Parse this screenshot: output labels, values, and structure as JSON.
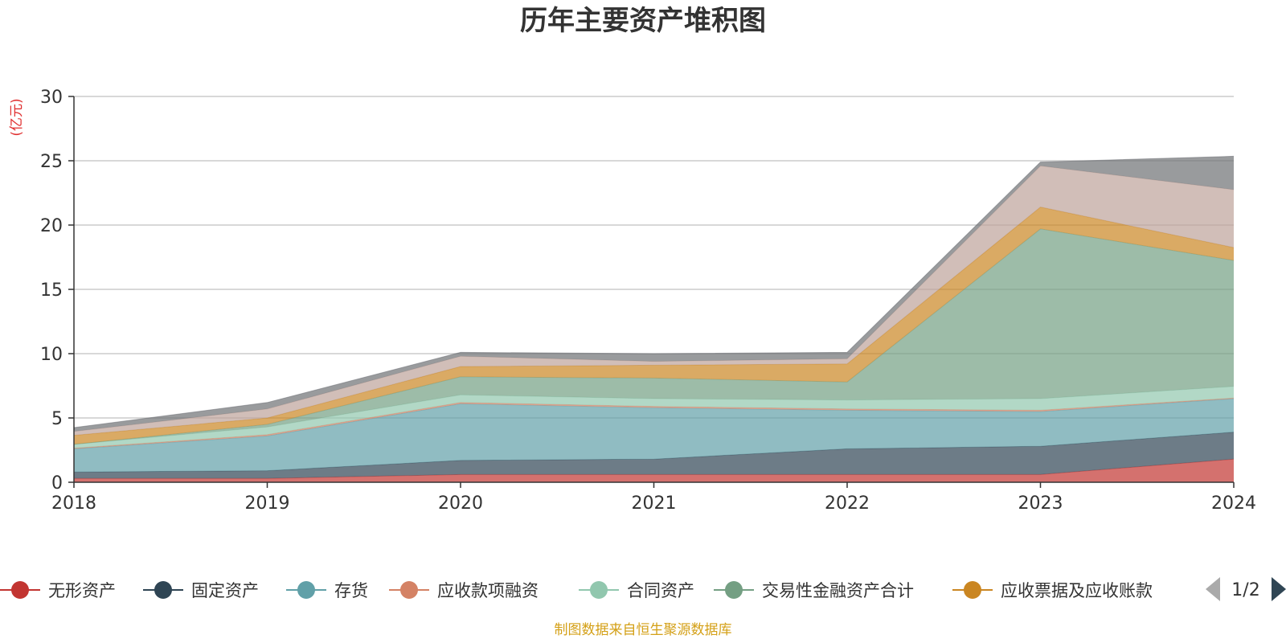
{
  "chart_data": {
    "type": "area",
    "stacked": true,
    "title": "历年主要资产堆积图",
    "ylabel": "(亿元)",
    "xlabel": "",
    "x": [
      "2018",
      "2019",
      "2020",
      "2021",
      "2022",
      "2023",
      "2024"
    ],
    "ylim": [
      0,
      30
    ],
    "yticks": [
      0,
      5,
      10,
      15,
      20,
      25,
      30
    ],
    "grid": true,
    "legend_position": "bottom",
    "series": [
      {
        "name": "无形资产",
        "color": "#c23531",
        "values": [
          0.3,
          0.3,
          0.6,
          0.6,
          0.6,
          0.6,
          1.8
        ]
      },
      {
        "name": "固定资产",
        "color": "#2f4554",
        "values": [
          0.5,
          0.6,
          1.1,
          1.2,
          2.0,
          2.2,
          2.1
        ]
      },
      {
        "name": "存货",
        "color": "#61a0a8",
        "values": [
          1.8,
          2.7,
          4.4,
          4.0,
          3.0,
          2.7,
          2.6
        ]
      },
      {
        "name": "应收款项融资",
        "color": "#d48265",
        "values": [
          0.05,
          0.1,
          0.1,
          0.1,
          0.1,
          0.1,
          0.05
        ]
      },
      {
        "name": "合同资产",
        "color": "#91c7ae",
        "values": [
          0.3,
          0.6,
          0.6,
          0.6,
          0.7,
          0.9,
          0.9
        ]
      },
      {
        "name": "交易性金融资产合计",
        "color": "#749f83",
        "values": [
          0.0,
          0.2,
          1.4,
          1.6,
          1.4,
          13.2,
          9.8
        ]
      },
      {
        "name": "应收票据及应收账款",
        "color": "#ca8622",
        "values": [
          0.7,
          0.5,
          0.8,
          1.0,
          1.4,
          1.7,
          1.0
        ]
      },
      {
        "name": "",
        "color": "#bda29a",
        "values": [
          0.3,
          0.7,
          0.8,
          0.3,
          0.4,
          3.2,
          4.5
        ]
      },
      {
        "name": "",
        "color": "#6e7074",
        "values": [
          0.3,
          0.5,
          0.3,
          0.6,
          0.5,
          0.3,
          2.6
        ]
      }
    ]
  },
  "legend": {
    "page_indicator": "1/2",
    "prev_icon": "triangle-left-icon",
    "next_icon": "triangle-right-icon"
  },
  "footer": {
    "source_text": "制图数据来自恒生聚源数据库"
  }
}
